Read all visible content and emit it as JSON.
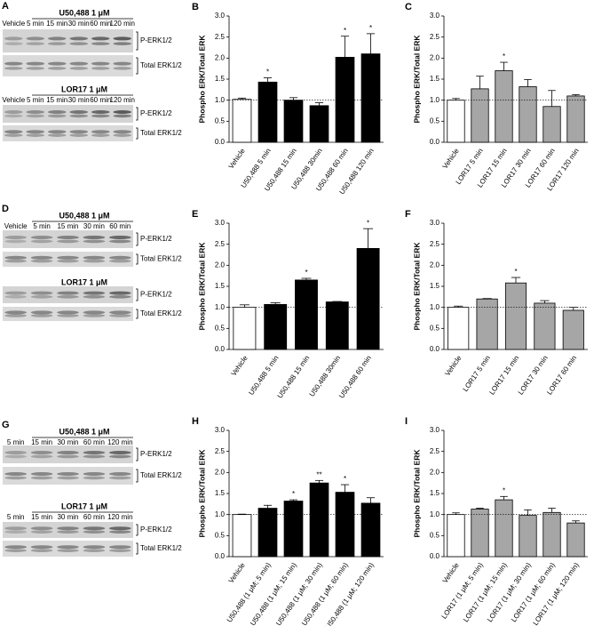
{
  "blots": [
    {
      "panel": "A",
      "groups": [
        {
          "treatment": "U50,488 1  μM",
          "lanes": [
            "Vehicle",
            "5 min",
            "15 min",
            "30 min",
            "60 min",
            "120 min"
          ],
          "rows": [
            "P-ERK1/2",
            "Total ERK1/2"
          ]
        },
        {
          "treatment": "LOR17 1  μM",
          "lanes": [
            "Vehicle",
            "5 min",
            "15 min",
            "30 min",
            "60 min",
            "120 min"
          ],
          "rows": [
            "P-ERK1/2",
            "Total ERK1/2"
          ]
        }
      ]
    },
    {
      "panel": "D",
      "groups": [
        {
          "treatment": "U50,488 1  μM",
          "lanes": [
            "Vehicle",
            "5 min",
            "15 min",
            "30 min",
            "60 min"
          ],
          "rows": [
            "P-ERK1/2",
            "Total ERK1/2"
          ]
        },
        {
          "treatment": "LOR17 1  μM",
          "rows": [
            "P-ERK1/2",
            "Total ERK1/2"
          ]
        }
      ]
    },
    {
      "panel": "G",
      "groups": [
        {
          "treatment": "U50,488 1  μM",
          "lanes": [
            "5 min",
            "15 min",
            "30 min",
            "60 min",
            "120 min"
          ],
          "rows": [
            "P-ERK1/2",
            "Total ERK1/2"
          ]
        },
        {
          "treatment": "LOR17 1  μM",
          "lanes": [
            "5 min",
            "15 min",
            "30 min",
            "60 min",
            "120 min"
          ],
          "rows": [
            "P-ERK1/2",
            "Total ERK1/2"
          ]
        }
      ]
    }
  ],
  "chart_data": [
    {
      "type": "bar",
      "panel": "B",
      "ylabel": "Phospho ERK/Total ERK",
      "categories": [
        "Vehicle",
        "U50,488 5 min",
        "U50,488 15 min",
        "U50,488 30min",
        "U50,488 60 min",
        "U50,488 120 min"
      ],
      "values": [
        1.02,
        1.43,
        1.0,
        0.87,
        2.02,
        2.1
      ],
      "errors": [
        0.03,
        0.1,
        0.06,
        0.07,
        0.5,
        0.48
      ],
      "significance": [
        null,
        "*",
        null,
        null,
        "*",
        "*"
      ],
      "colors": [
        "#ffffff",
        "#000000",
        "#000000",
        "#000000",
        "#000000",
        "#000000"
      ],
      "ylim": [
        0,
        3
      ],
      "ref_line": 1,
      "yticks": [
        {
          "value": 0,
          "label": "0.0"
        },
        0.5,
        {
          "value": 1,
          "label": "1.0"
        },
        1.5,
        {
          "value": 2,
          "label": "2.0"
        },
        2.5,
        {
          "value": 3,
          "label": "3.0"
        }
      ]
    },
    {
      "type": "bar",
      "panel": "C",
      "ylabel": "Phospho ERK/Total ERK",
      "categories": [
        "Vehicle",
        "LOR17 5 min",
        "LOR17 15 min",
        "LOR17 30 min",
        "LOR17 60 min",
        "LOR17 120 min"
      ],
      "values": [
        1.0,
        1.27,
        1.7,
        1.32,
        0.85,
        1.1
      ],
      "errors": [
        0.04,
        0.3,
        0.2,
        0.17,
        0.38,
        0.03
      ],
      "significance": [
        null,
        null,
        "*",
        null,
        null,
        null
      ],
      "colors": [
        "#ffffff",
        "#a6a6a6",
        "#a6a6a6",
        "#a6a6a6",
        "#a6a6a6",
        "#a6a6a6"
      ],
      "ylim": [
        0,
        3
      ],
      "ref_line": 1,
      "yticks": [
        {
          "value": 0,
          "label": "0.0"
        },
        0.5,
        {
          "value": 1,
          "label": "1.0"
        },
        1.5,
        {
          "value": 2,
          "label": "2.0"
        },
        2.5,
        {
          "value": 3,
          "label": "3.0"
        }
      ]
    },
    {
      "type": "bar",
      "panel": "E",
      "ylabel": "Phospho ERK/Total ERK",
      "categories": [
        "Vehicle",
        "U50,488 5 min",
        "U50,488 15 min",
        "U50,488 30min",
        "U50,488 60 min"
      ],
      "values": [
        1.0,
        1.07,
        1.65,
        1.13,
        2.4
      ],
      "errors": [
        0.06,
        0.04,
        0.04,
        0.01,
        0.47
      ],
      "significance": [
        null,
        null,
        "*",
        null,
        "*"
      ],
      "colors": [
        "#ffffff",
        "#000000",
        "#000000",
        "#000000",
        "#000000"
      ],
      "ylim": [
        0,
        3
      ],
      "ref_line": 1,
      "yticks": [
        {
          "value": 0,
          "label": "0.0"
        },
        0.5,
        {
          "value": 1,
          "label": "1.0"
        },
        1.5,
        {
          "value": 2,
          "label": "2.0"
        },
        2.5,
        {
          "value": 3,
          "label": "3.0"
        }
      ]
    },
    {
      "type": "bar",
      "panel": "F",
      "ylabel": "Phospho ERK/Total ERK",
      "categories": [
        "Vehicle",
        "LOR17 5 min",
        "LOR17 15 min",
        "LOR17 30 min",
        "LOR17 60 min"
      ],
      "values": [
        1.0,
        1.2,
        1.58,
        1.1,
        0.93
      ],
      "errors": [
        0.03,
        0.01,
        0.13,
        0.06,
        0.07
      ],
      "significance": [
        null,
        null,
        "*",
        null,
        null
      ],
      "colors": [
        "#ffffff",
        "#a6a6a6",
        "#a6a6a6",
        "#a6a6a6",
        "#a6a6a6"
      ],
      "ylim": [
        0,
        3
      ],
      "ref_line": 1,
      "yticks": [
        {
          "value": 0,
          "label": "0.0"
        },
        0.5,
        {
          "value": 1,
          "label": "1.0"
        },
        1.5,
        {
          "value": 2,
          "label": "2.0"
        },
        2.5,
        {
          "value": 3,
          "label": "3.0"
        }
      ]
    },
    {
      "type": "bar",
      "panel": "H",
      "ylabel": "Phospho ERK/Total ERK",
      "categories": [
        "Vehicle",
        "U50,488 (1 μM; 5 min)",
        "U50,488 (1 μM; 15 min)",
        "U50,488 (1 μM; 30 min)",
        "U50,488 (1 μM; 60 min)",
        "U50,488 (1 μM; 120 min)"
      ],
      "values": [
        1.0,
        1.15,
        1.32,
        1.75,
        1.53,
        1.27
      ],
      "errors": [
        0.01,
        0.07,
        0.03,
        0.06,
        0.18,
        0.13
      ],
      "significance": [
        null,
        null,
        "*",
        "**",
        "*",
        null
      ],
      "colors": [
        "#ffffff",
        "#000000",
        "#000000",
        "#000000",
        "#000000",
        "#000000"
      ],
      "ylim": [
        0,
        3
      ],
      "ref_line": 1,
      "yticks": [
        {
          "value": 0,
          "label": "0.0"
        },
        0.5,
        {
          "value": 1,
          "label": "1.0"
        },
        1.5,
        {
          "value": 2,
          "label": "2.0"
        },
        2.5,
        {
          "value": 3,
          "label": "3.0"
        }
      ]
    },
    {
      "type": "bar",
      "panel": "I",
      "ylabel": "Phospho ERK/Total ERK",
      "categories": [
        "Vehicle",
        "LOR17 (1 μM; 5 min)",
        "LOR17 (1 μM; 15 min)",
        "LOR17 (1 μM; 30 min)",
        "LOR17 (1 μM; 60 min)",
        "LOR17 (1 μM; 120 min)"
      ],
      "values": [
        1.0,
        1.13,
        1.35,
        0.98,
        1.05,
        0.8
      ],
      "errors": [
        0.04,
        0.02,
        0.08,
        0.13,
        0.1,
        0.05
      ],
      "significance": [
        null,
        null,
        "*",
        null,
        null,
        null
      ],
      "colors": [
        "#ffffff",
        "#a6a6a6",
        "#a6a6a6",
        "#a6a6a6",
        "#a6a6a6",
        "#a6a6a6"
      ],
      "ylim": [
        0,
        3
      ],
      "ref_line": 1,
      "yticks": [
        {
          "value": 0,
          "label": "0.0"
        },
        0.5,
        {
          "value": 1,
          "label": "1.0"
        },
        1.5,
        {
          "value": 2,
          "label": "2.0"
        },
        2.5,
        {
          "value": 3,
          "label": "3.0"
        }
      ]
    }
  ]
}
